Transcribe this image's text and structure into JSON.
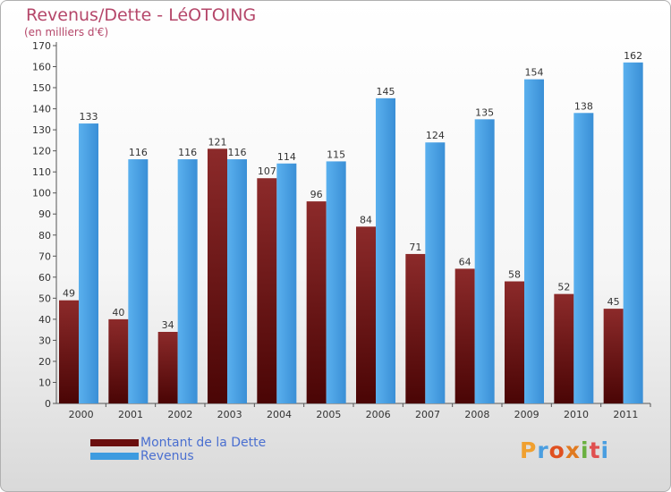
{
  "header": {
    "title": "Revenus/Dette - LéOTOING",
    "subtitle": "(en milliers d'€)"
  },
  "legend": {
    "items": [
      {
        "label": "Montant de la Dette",
        "color": "#7a1a1a"
      },
      {
        "label": "Revenus",
        "color": "#3d9be0"
      }
    ]
  },
  "logo": {
    "text": "Proxiti",
    "colors": [
      "#f0a030",
      "#4a9ee0",
      "#e05020",
      "#e07a20",
      "#6ab040",
      "#e05050",
      "#4a9ee0"
    ]
  },
  "chart_data": {
    "type": "bar",
    "categories": [
      "2000",
      "2001",
      "2002",
      "2003",
      "2004",
      "2005",
      "2006",
      "2007",
      "2008",
      "2009",
      "2010",
      "2011"
    ],
    "series": [
      {
        "name": "Montant de la Dette",
        "values": [
          49,
          40,
          34,
          121,
          107,
          96,
          84,
          71,
          64,
          58,
          52,
          45
        ],
        "color": "#7a1a1a"
      },
      {
        "name": "Revenus",
        "values": [
          133,
          116,
          116,
          116,
          114,
          115,
          145,
          124,
          135,
          154,
          138,
          162
        ],
        "color": "#3d9be0"
      }
    ],
    "ylim": [
      0,
      170
    ],
    "yticks": [
      0,
      10,
      20,
      30,
      40,
      50,
      60,
      70,
      80,
      90,
      100,
      110,
      120,
      130,
      140,
      150,
      160,
      170
    ],
    "grid": false,
    "legend_position": "bottom-left"
  }
}
